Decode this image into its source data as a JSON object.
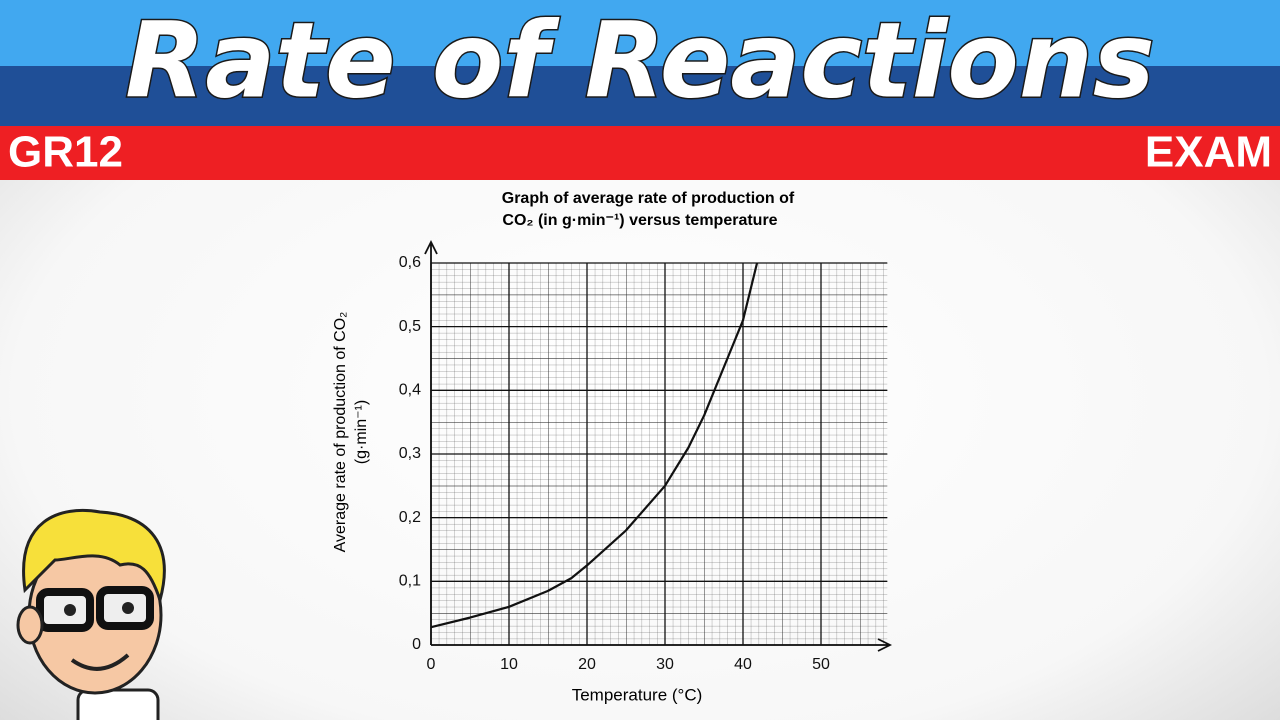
{
  "header": {
    "title": "Rate of Reactions",
    "left_tag": "GR12",
    "right_tag": "EXAM"
  },
  "chart_data": {
    "type": "line",
    "title": [
      "Graph of average rate of production of",
      "CO₂ (in g·min⁻¹) versus temperature"
    ],
    "x_label": "Temperature (°C)",
    "y_label": [
      "Average rate of production of CO₂",
      "(g·min⁻¹)"
    ],
    "x": [
      0,
      5,
      10,
      15,
      18,
      20,
      25,
      30,
      33,
      35,
      38,
      40,
      41.8
    ],
    "values": [
      0.028,
      0.043,
      0.06,
      0.085,
      0.105,
      0.125,
      0.18,
      0.25,
      0.31,
      0.36,
      0.45,
      0.51,
      0.6
    ],
    "color": "#111111",
    "xlim": [
      0,
      58.5
    ],
    "ylim": [
      0,
      0.6
    ],
    "xticks": [
      0,
      10,
      20,
      30,
      40,
      50
    ],
    "yticks": [
      0,
      {
        "value": 0.1,
        "label": "0,1"
      },
      {
        "value": 0.2,
        "label": "0,2"
      },
      {
        "value": 0.3,
        "label": "0,3"
      },
      {
        "value": 0.4,
        "label": "0,4"
      },
      {
        "value": 0.5,
        "label": "0,5"
      },
      {
        "value": 0.6,
        "label": "0,6"
      }
    ],
    "grid": true
  }
}
